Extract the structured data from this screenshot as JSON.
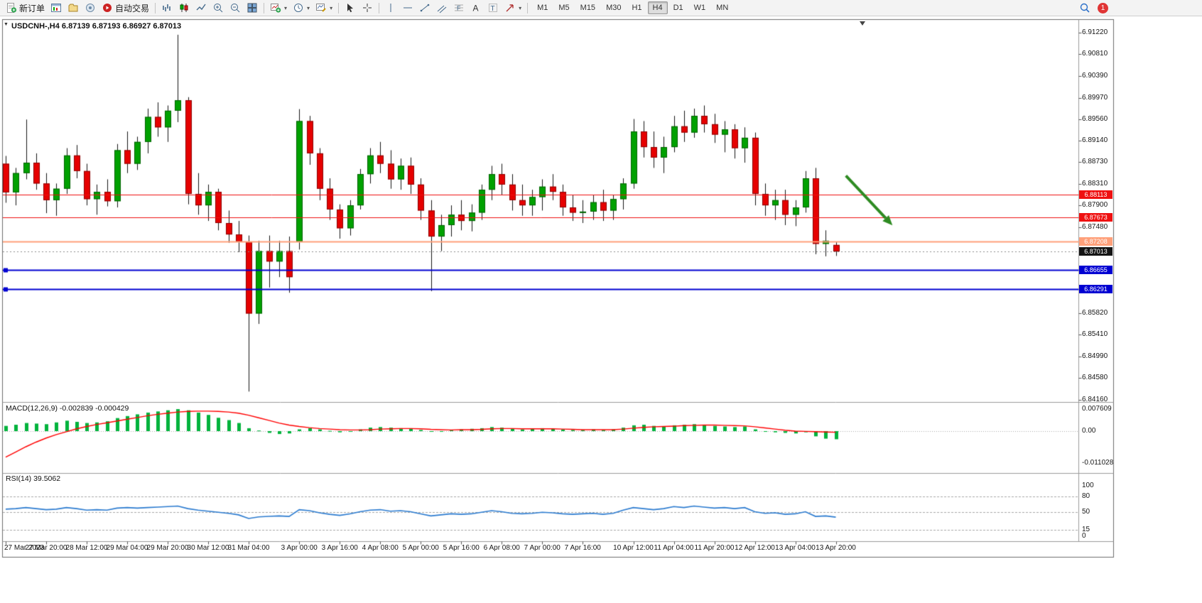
{
  "toolbar": {
    "new_order": "新订单",
    "autotrade": "自动交易",
    "timeframes": [
      "M1",
      "M5",
      "M15",
      "M30",
      "H1",
      "H4",
      "D1",
      "W1",
      "MN"
    ],
    "active_timeframe": "H4",
    "notification_count": "1"
  },
  "chart": {
    "title": "USDCNH-,H4",
    "ohlc_text": "6.87139 6.87193 6.86927 6.87013",
    "macd_title": "MACD(12,26,9) -0.002839 -0.000429",
    "rsi_title": "RSI(14) 39.5062"
  },
  "price_axis": {
    "labels": [
      "6.91220",
      "6.90810",
      "6.90390",
      "6.89970",
      "6.89560",
      "6.89140",
      "6.88730",
      "6.88310",
      "6.87900",
      "6.87480",
      "6.85820",
      "6.85410",
      "6.84990",
      "6.84580",
      "6.84160"
    ]
  },
  "price_badges": [
    {
      "value": "6.88113",
      "color": "#ef1010"
    },
    {
      "value": "6.87673",
      "color": "#ef1010"
    },
    {
      "value": "6.87208",
      "color": "#ffa07a"
    },
    {
      "value": "6.87013",
      "color": "#141414"
    },
    {
      "value": "6.86655",
      "color": "#0000d2"
    },
    {
      "value": "6.86291",
      "color": "#0000d2"
    }
  ],
  "macd_axis": [
    "0.007609",
    "0.00",
    "-0.011028"
  ],
  "rsi_axis": [
    "100",
    "80",
    "50",
    "15",
    "0"
  ],
  "chart_data": {
    "type": "candlestick",
    "symbol": "USDCNH-",
    "period": "H4",
    "ohlc": {
      "open": 6.87139,
      "high": 6.87193,
      "low": 6.86927,
      "close": 6.87013
    },
    "colors": {
      "bull": "#00a100",
      "bear": "#e60000",
      "wick": "#151515",
      "macd_hist": "#00b33c",
      "macd_signal": "#ff0000",
      "rsi": "#2b7bd0",
      "arrow": "#2e8b22"
    },
    "candles": [
      [
        6.887,
        6.8885,
        6.8795,
        6.8815
      ],
      [
        6.8815,
        6.8862,
        6.879,
        6.8852
      ],
      [
        6.8852,
        6.8955,
        6.884,
        6.8872
      ],
      [
        6.8872,
        6.889,
        6.882,
        6.8832
      ],
      [
        6.8832,
        6.8852,
        6.8775,
        6.88
      ],
      [
        6.88,
        6.8832,
        6.877,
        6.8822
      ],
      [
        6.8822,
        6.89,
        6.8812,
        6.8886
      ],
      [
        6.8886,
        6.8906,
        6.8842,
        6.8856
      ],
      [
        6.8856,
        6.887,
        6.879,
        6.8802
      ],
      [
        6.8802,
        6.883,
        6.8772,
        6.8816
      ],
      [
        6.8816,
        6.884,
        6.8788,
        6.8798
      ],
      [
        6.8798,
        6.8908,
        6.8786,
        6.8896
      ],
      [
        6.8896,
        6.8932,
        6.8852,
        6.887
      ],
      [
        6.887,
        6.8922,
        6.8858,
        6.8912
      ],
      [
        6.8912,
        6.8976,
        6.889,
        6.896
      ],
      [
        6.896,
        6.8988,
        6.8922,
        6.894
      ],
      [
        6.894,
        6.8982,
        6.8912,
        6.8972
      ],
      [
        6.8972,
        6.9118,
        6.895,
        6.8992
      ],
      [
        6.8992,
        6.8998,
        6.8792,
        6.8812
      ],
      [
        6.8812,
        6.8852,
        6.8772,
        6.879
      ],
      [
        6.879,
        6.883,
        6.876,
        6.8816
      ],
      [
        6.8816,
        6.8822,
        6.8742,
        6.8756
      ],
      [
        6.8756,
        6.878,
        6.8718,
        6.8734
      ],
      [
        6.8734,
        6.876,
        6.87,
        6.872
      ],
      [
        6.872,
        6.8732,
        6.8432,
        6.8582
      ],
      [
        6.8582,
        6.8722,
        6.8562,
        6.8702
      ],
      [
        6.8702,
        6.8732,
        6.8632,
        6.8682
      ],
      [
        6.8682,
        6.8722,
        6.8652,
        6.8702
      ],
      [
        6.8702,
        6.873,
        6.8622,
        6.8652
      ],
      [
        6.872,
        6.8975,
        6.8705,
        6.8952
      ],
      [
        6.8952,
        6.8962,
        6.8868,
        6.889
      ],
      [
        6.889,
        6.89,
        6.88,
        6.8822
      ],
      [
        6.8822,
        6.8842,
        6.8762,
        6.8782
      ],
      [
        6.8782,
        6.8792,
        6.8726,
        6.8746
      ],
      [
        6.8746,
        6.88,
        6.8732,
        6.879
      ],
      [
        6.879,
        6.886,
        6.8782,
        6.885
      ],
      [
        6.885,
        6.89,
        6.8832,
        6.8886
      ],
      [
        6.8886,
        6.8912,
        6.8852,
        6.887
      ],
      [
        6.887,
        6.8896,
        6.8822,
        6.884
      ],
      [
        6.884,
        6.888,
        6.882,
        6.8866
      ],
      [
        6.8866,
        6.8882,
        6.8812,
        6.883
      ],
      [
        6.883,
        6.8842,
        6.8762,
        6.878
      ],
      [
        6.878,
        6.88,
        6.8625,
        6.873
      ],
      [
        6.873,
        6.8772,
        6.8702,
        6.8752
      ],
      [
        6.8752,
        6.879,
        6.873,
        6.8772
      ],
      [
        6.8772,
        6.88,
        6.8742,
        6.876
      ],
      [
        6.876,
        6.8792,
        6.874,
        6.8776
      ],
      [
        6.8776,
        6.883,
        6.8762,
        6.882
      ],
      [
        6.882,
        6.8866,
        6.88,
        6.885
      ],
      [
        6.885,
        6.887,
        6.881,
        6.883
      ],
      [
        6.883,
        6.885,
        6.878,
        6.88
      ],
      [
        6.88,
        6.883,
        6.877,
        6.879
      ],
      [
        6.879,
        6.882,
        6.877,
        6.8806
      ],
      [
        6.8806,
        6.884,
        6.878,
        6.8826
      ],
      [
        6.8826,
        6.885,
        6.88,
        6.8816
      ],
      [
        6.8816,
        6.883,
        6.877,
        6.8786
      ],
      [
        6.8786,
        6.881,
        6.876,
        6.8776
      ],
      [
        6.8776,
        6.88,
        6.8756,
        6.8778
      ],
      [
        6.8778,
        6.881,
        6.8762,
        6.8796
      ],
      [
        6.8796,
        6.882,
        6.876,
        6.878
      ],
      [
        6.878,
        6.881,
        6.8762,
        6.8802
      ],
      [
        6.8802,
        6.8842,
        6.8782,
        6.8832
      ],
      [
        6.8832,
        6.8956,
        6.8822,
        6.8932
      ],
      [
        6.8932,
        6.8952,
        6.8882,
        6.8902
      ],
      [
        6.8902,
        6.8932,
        6.8862,
        6.8882
      ],
      [
        6.8882,
        6.8922,
        6.8852,
        6.8902
      ],
      [
        6.8902,
        6.8962,
        6.8892,
        6.8942
      ],
      [
        6.8942,
        6.8972,
        6.8912,
        6.893
      ],
      [
        6.893,
        6.8976,
        6.892,
        6.8962
      ],
      [
        6.8962,
        6.8982,
        6.893,
        6.8946
      ],
      [
        6.8946,
        6.8966,
        6.891,
        6.8926
      ],
      [
        6.8926,
        6.8952,
        6.8892,
        6.8936
      ],
      [
        6.8936,
        6.8946,
        6.888,
        6.89
      ],
      [
        6.89,
        6.894,
        6.8872,
        6.892
      ],
      [
        6.892,
        6.893,
        6.879,
        6.8812
      ],
      [
        6.8812,
        6.8832,
        6.877,
        6.879
      ],
      [
        6.879,
        6.882,
        6.8762,
        6.88
      ],
      [
        6.88,
        6.882,
        6.8752,
        6.8772
      ],
      [
        6.8772,
        6.88,
        6.875,
        6.8786
      ],
      [
        6.8786,
        6.8856,
        6.8776,
        6.8842
      ],
      [
        6.8842,
        6.8862,
        6.8696,
        6.8716
      ],
      [
        6.8716,
        6.8742,
        6.8692,
        6.8722
      ],
      [
        6.87139,
        6.87193,
        6.86927,
        6.87013
      ]
    ],
    "horizontal_lines": [
      {
        "price": 6.88113,
        "color": "#ef1010",
        "width": 1,
        "handles": false
      },
      {
        "price": 6.87673,
        "color": "#ef1010",
        "width": 1,
        "handles": false
      },
      {
        "price": 6.87208,
        "color": "#ffa07a",
        "width": 2,
        "handles": false
      },
      {
        "price": 6.86655,
        "color": "#0000d2",
        "width": 2,
        "handles": true
      },
      {
        "price": 6.86291,
        "color": "#0000d2",
        "width": 2,
        "handles": true
      }
    ],
    "bid_line": {
      "price": 6.87013
    },
    "macd": {
      "params": "12,26,9",
      "last_main": -0.002839,
      "last_signal": -0.000429,
      "range": [
        0.007609,
        -0.011028
      ],
      "histogram": [
        0.0018,
        0.0022,
        0.0028,
        0.0026,
        0.0024,
        0.003,
        0.0036,
        0.0032,
        0.0028,
        0.003,
        0.0034,
        0.0045,
        0.0052,
        0.0058,
        0.0064,
        0.0068,
        0.0072,
        0.0076,
        0.0072,
        0.0064,
        0.0056,
        0.0046,
        0.0038,
        0.0028,
        0.001,
        0.0002,
        -0.0006,
        -0.001,
        -0.0008,
        0.0006,
        0.001,
        0.0006,
        0.0001,
        -0.0004,
        -0.0002,
        0.0006,
        0.0012,
        0.0014,
        0.0012,
        0.001,
        0.0008,
        0.0004,
        -0.0002,
        0.0,
        0.0004,
        0.0006,
        0.0008,
        0.001,
        0.0014,
        0.0012,
        0.0008,
        0.0006,
        0.0008,
        0.001,
        0.0008,
        0.0006,
        0.0004,
        0.0004,
        0.0006,
        0.0004,
        0.0006,
        0.0012,
        0.002,
        0.0022,
        0.0018,
        0.0016,
        0.002,
        0.0022,
        0.0024,
        0.0022,
        0.0018,
        0.0016,
        0.0014,
        0.0016,
        0.0006,
        -0.0002,
        -0.0004,
        -0.0006,
        -0.0008,
        -0.0004,
        -0.0018,
        -0.0026,
        -0.0028
      ],
      "signal": [
        -0.009,
        -0.0072,
        -0.0054,
        -0.0038,
        -0.0024,
        -0.0012,
        -0.0002,
        0.0008,
        0.0016,
        0.0023,
        0.0029,
        0.0035,
        0.0041,
        0.0047,
        0.0053,
        0.0058,
        0.0062,
        0.0066,
        0.0068,
        0.0069,
        0.0069,
        0.0068,
        0.0066,
        0.0062,
        0.0055,
        0.0046,
        0.0037,
        0.0028,
        0.0021,
        0.0016,
        0.0012,
        0.0009,
        0.0007,
        0.0005,
        0.0004,
        0.0004,
        0.0005,
        0.0007,
        0.0008,
        0.0009,
        0.0009,
        0.0008,
        0.0006,
        0.0005,
        0.0004,
        0.0005,
        0.0005,
        0.0006,
        0.0008,
        0.0009,
        0.0009,
        0.0008,
        0.0008,
        0.0008,
        0.0008,
        0.0007,
        0.0006,
        0.0005,
        0.0005,
        0.0005,
        0.0005,
        0.0007,
        0.001,
        0.0013,
        0.0015,
        0.0016,
        0.0017,
        0.0019,
        0.002,
        0.0021,
        0.0021,
        0.002,
        0.0019,
        0.0018,
        0.0015,
        0.0011,
        0.0007,
        0.0003,
        0.0,
        -0.0001,
        -0.0002,
        -0.0003,
        -0.0004
      ]
    },
    "rsi": {
      "period": 14,
      "last": 39.5062,
      "levels": [
        80,
        50,
        15
      ],
      "range": [
        0,
        100
      ],
      "values": [
        55,
        56,
        58,
        56,
        54,
        55,
        58,
        56,
        53,
        54,
        53,
        57,
        58,
        57,
        58,
        59,
        60,
        61,
        56,
        53,
        51,
        49,
        47,
        44,
        37,
        40,
        41,
        42,
        41,
        54,
        52,
        48,
        45,
        43,
        46,
        50,
        53,
        54,
        51,
        52,
        50,
        46,
        42,
        44,
        46,
        45,
        46,
        49,
        52,
        50,
        47,
        46,
        47,
        49,
        48,
        46,
        45,
        46,
        47,
        45,
        47,
        53,
        58,
        56,
        54,
        56,
        60,
        58,
        61,
        59,
        57,
        58,
        56,
        58,
        50,
        47,
        48,
        45,
        46,
        50,
        41,
        42,
        39.5
      ]
    },
    "time_labels": [
      {
        "text": "27 Mar 2023",
        "index": 0
      },
      {
        "text": "27 Mar 20:00",
        "index": 4
      },
      {
        "text": "28 Mar 12:00",
        "index": 8
      },
      {
        "text": "29 Mar 04:00",
        "index": 12
      },
      {
        "text": "29 Mar 20:00",
        "index": 16
      },
      {
        "text": "30 Mar 12:00",
        "index": 20
      },
      {
        "text": "31 Mar 04:00",
        "index": 24
      },
      {
        "text": "3 Apr 00:00",
        "index": 29
      },
      {
        "text": "3 Apr 16:00",
        "index": 33
      },
      {
        "text": "4 Apr 08:00",
        "index": 37
      },
      {
        "text": "5 Apr 00:00",
        "index": 41
      },
      {
        "text": "5 Apr 16:00",
        "index": 45
      },
      {
        "text": "6 Apr 08:00",
        "index": 49
      },
      {
        "text": "7 Apr 00:00",
        "index": 53
      },
      {
        "text": "7 Apr 16:00",
        "index": 57
      },
      {
        "text": "10 Apr 12:00",
        "index": 62
      },
      {
        "text": "11 Apr 04:00",
        "index": 66
      },
      {
        "text": "11 Apr 20:00",
        "index": 70
      },
      {
        "text": "12 Apr 12:00",
        "index": 74
      },
      {
        "text": "13 Apr 04:00",
        "index": 78
      },
      {
        "text": "13 Apr 20:00",
        "index": 82
      }
    ],
    "arrow": {
      "from": {
        "index": 83,
        "price": 6.8847
      },
      "to": {
        "index": 87.6,
        "price": 6.87515
      }
    }
  }
}
